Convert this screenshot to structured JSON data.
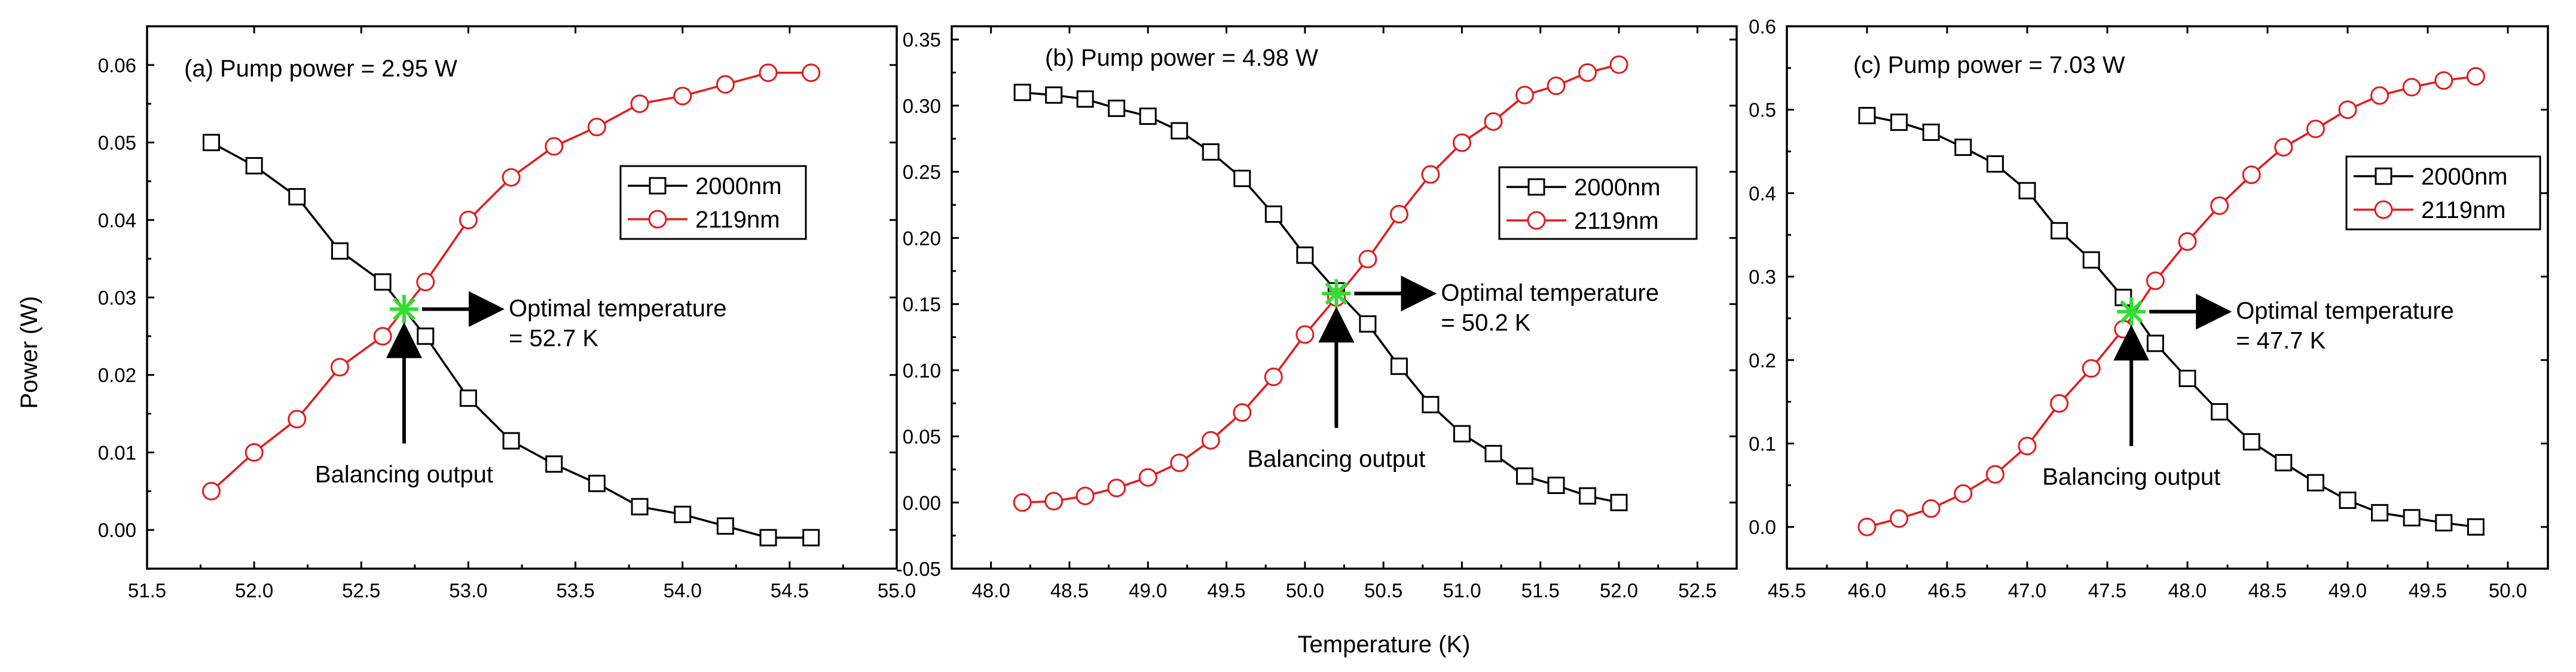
{
  "figure": {
    "ylabel": "Power (W)",
    "xlabel": "Temperature (K)"
  },
  "chart_data": [
    {
      "type": "line",
      "title": "(a) Pump power = 2.95 W",
      "xlim": [
        51.5,
        55.0
      ],
      "ylim": [
        -0.005,
        0.065
      ],
      "xticks": [
        51.5,
        52.0,
        52.5,
        53.0,
        53.5,
        54.0,
        54.5,
        55.0
      ],
      "yticks": [
        0.0,
        0.01,
        0.02,
        0.03,
        0.04,
        0.05,
        0.06
      ],
      "xtick_labels": [
        "51.5",
        "52.0",
        "52.5",
        "53.0",
        "53.5",
        "54.0",
        "54.5",
        "55.0"
      ],
      "ytick_labels": [
        "0.00",
        "0.01",
        "0.02",
        "0.03",
        "0.04",
        "0.05",
        "0.06"
      ],
      "series": [
        {
          "name": "2000nm",
          "color": "#000000",
          "marker": "square",
          "x": [
            51.8,
            52.0,
            52.2,
            52.4,
            52.6,
            52.8,
            53.0,
            53.2,
            53.4,
            53.6,
            53.8,
            54.0,
            54.2,
            54.4,
            54.6
          ],
          "y": [
            0.05,
            0.047,
            0.043,
            0.036,
            0.032,
            0.025,
            0.017,
            0.0115,
            0.0085,
            0.006,
            0.003,
            0.002,
            0.0005,
            -0.001,
            -0.001
          ]
        },
        {
          "name": "2119nm",
          "color": "#e31a1c",
          "marker": "circle",
          "x": [
            51.8,
            52.0,
            52.2,
            52.4,
            52.6,
            52.8,
            53.0,
            53.2,
            53.4,
            53.6,
            53.8,
            54.0,
            54.2,
            54.4,
            54.6
          ],
          "y": [
            0.005,
            0.01,
            0.0143,
            0.021,
            0.025,
            0.032,
            0.04,
            0.0455,
            0.0495,
            0.052,
            0.055,
            0.056,
            0.0575,
            0.059,
            0.059
          ]
        }
      ],
      "crossing": {
        "x": 52.7,
        "y": 0.0285,
        "color": "#33dd33"
      },
      "annotation": {
        "line1": "Optimal temperature",
        "line2": "= 52.7 K",
        "below": "Balancing output"
      }
    },
    {
      "type": "line",
      "title": "(b) Pump power = 4.98 W",
      "xlim": [
        47.75,
        52.75
      ],
      "ylim": [
        -0.05,
        0.36
      ],
      "xticks": [
        48.0,
        48.5,
        49.0,
        49.5,
        50.0,
        50.5,
        51.0,
        51.5,
        52.0,
        52.5
      ],
      "yticks": [
        -0.05,
        0.0,
        0.05,
        0.1,
        0.15,
        0.2,
        0.25,
        0.3,
        0.35
      ],
      "xtick_labels": [
        "48.0",
        "48.5",
        "49.0",
        "49.5",
        "50.0",
        "50.5",
        "51.0",
        "51.5",
        "52.0",
        "52.5"
      ],
      "ytick_labels": [
        "-0.05",
        "0.00",
        "0.05",
        "0.10",
        "0.15",
        "0.20",
        "0.25",
        "0.30",
        "0.35"
      ],
      "series": [
        {
          "name": "2000nm",
          "color": "#000000",
          "marker": "square",
          "x": [
            48.2,
            48.4,
            48.6,
            48.8,
            49.0,
            49.2,
            49.4,
            49.6,
            49.8,
            50.0,
            50.2,
            50.4,
            50.6,
            50.8,
            51.0,
            51.2,
            51.4,
            51.6,
            51.8,
            52.0
          ],
          "y": [
            0.31,
            0.308,
            0.305,
            0.298,
            0.292,
            0.281,
            0.265,
            0.245,
            0.218,
            0.187,
            0.16,
            0.135,
            0.103,
            0.074,
            0.052,
            0.037,
            0.02,
            0.013,
            0.005,
            0.0
          ]
        },
        {
          "name": "2119nm",
          "color": "#e31a1c",
          "marker": "circle",
          "x": [
            48.2,
            48.4,
            48.6,
            48.8,
            49.0,
            49.2,
            49.4,
            49.6,
            49.8,
            50.0,
            50.2,
            50.4,
            50.6,
            50.8,
            51.0,
            51.2,
            51.4,
            51.6,
            51.8,
            52.0
          ],
          "y": [
            0.0,
            0.001,
            0.005,
            0.011,
            0.019,
            0.03,
            0.047,
            0.068,
            0.095,
            0.127,
            0.155,
            0.184,
            0.218,
            0.248,
            0.272,
            0.288,
            0.308,
            0.315,
            0.325,
            0.331
          ]
        }
      ],
      "crossing": {
        "x": 50.2,
        "y": 0.158,
        "color": "#33dd33"
      },
      "annotation": {
        "line1": "Optimal temperature",
        "line2": "= 50.2 K",
        "below": "Balancing output"
      }
    },
    {
      "type": "line",
      "title": "(c) Pump power = 7.03 W",
      "xlim": [
        45.5,
        50.25
      ],
      "ylim": [
        -0.05,
        0.6
      ],
      "xticks": [
        45.5,
        46.0,
        46.5,
        47.0,
        47.5,
        48.0,
        48.5,
        49.0,
        49.5,
        50.0
      ],
      "yticks": [
        0.0,
        0.1,
        0.2,
        0.3,
        0.4,
        0.5,
        0.6
      ],
      "xtick_labels": [
        "45.5",
        "46.0",
        "46.5",
        "47.0",
        "47.5",
        "48.0",
        "48.5",
        "49.0",
        "49.5",
        "50.0"
      ],
      "ytick_labels": [
        "0.0",
        "0.1",
        "0.2",
        "0.3",
        "0.4",
        "0.5",
        "0.6"
      ],
      "series": [
        {
          "name": "2000nm",
          "color": "#000000",
          "marker": "square",
          "x": [
            46.0,
            46.2,
            46.4,
            46.6,
            46.8,
            47.0,
            47.2,
            47.4,
            47.6,
            47.8,
            48.0,
            48.2,
            48.4,
            48.6,
            48.8,
            49.0,
            49.2,
            49.4,
            49.6,
            49.8
          ],
          "y": [
            0.493,
            0.485,
            0.473,
            0.455,
            0.435,
            0.403,
            0.355,
            0.32,
            0.275,
            0.22,
            0.178,
            0.138,
            0.102,
            0.077,
            0.053,
            0.032,
            0.017,
            0.011,
            0.005,
            0.0
          ]
        },
        {
          "name": "2119nm",
          "color": "#e31a1c",
          "marker": "circle",
          "x": [
            46.0,
            46.2,
            46.4,
            46.6,
            46.8,
            47.0,
            47.2,
            47.4,
            47.6,
            47.8,
            48.0,
            48.2,
            48.4,
            48.6,
            48.8,
            49.0,
            49.2,
            49.4,
            49.6,
            49.8
          ],
          "y": [
            0.0,
            0.01,
            0.022,
            0.04,
            0.063,
            0.097,
            0.148,
            0.19,
            0.237,
            0.295,
            0.342,
            0.385,
            0.422,
            0.455,
            0.477,
            0.5,
            0.517,
            0.527,
            0.535,
            0.54
          ]
        }
      ],
      "crossing": {
        "x": 47.65,
        "y": 0.258,
        "color": "#33dd33"
      },
      "annotation": {
        "line1": "Optimal temperature",
        "line2": "= 47.7 K",
        "below": "Balancing output"
      }
    }
  ]
}
